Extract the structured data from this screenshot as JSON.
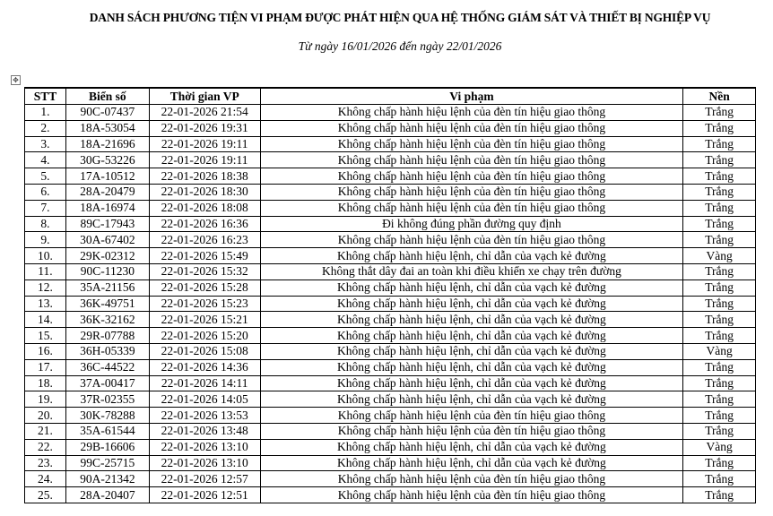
{
  "title": "DANH SÁCH PHƯƠNG TIỆN VI PHẠM ĐƯỢC PHÁT HIỆN QUA HỆ THỐNG GIÁM SÁT VÀ THIẾT BỊ NGHIỆP VỤ",
  "subtitle": "Từ ngày 16/01/2026 đến ngày 22/01/2026",
  "table": {
    "headers": [
      "STT",
      "Biển số",
      "Thời gian VP",
      "Vi phạm",
      "Nền"
    ],
    "rows": [
      [
        "1.",
        "90C-07437",
        "22-01-2026 21:54",
        "Không chấp hành hiệu lệnh của đèn tín hiệu giao thông",
        "Trắng"
      ],
      [
        "2.",
        "18A-53054",
        "22-01-2026 19:31",
        "Không chấp hành hiệu lệnh của đèn tín hiệu giao thông",
        "Trắng"
      ],
      [
        "3.",
        "18A-21696",
        "22-01-2026 19:11",
        "Không chấp hành hiệu lệnh của đèn tín hiệu giao thông",
        "Trắng"
      ],
      [
        "4.",
        "30G-53226",
        "22-01-2026 19:11",
        "Không chấp hành hiệu lệnh của đèn tín hiệu giao thông",
        "Trắng"
      ],
      [
        "5.",
        "17A-10512",
        "22-01-2026 18:38",
        "Không chấp hành hiệu lệnh của đèn tín hiệu giao thông",
        "Trắng"
      ],
      [
        "6.",
        "28A-20479",
        "22-01-2026 18:30",
        "Không chấp hành hiệu lệnh của đèn tín hiệu giao thông",
        "Trắng"
      ],
      [
        "7.",
        "18A-16974",
        "22-01-2026 18:08",
        "Không chấp hành hiệu lệnh của đèn tín hiệu giao thông",
        "Trắng"
      ],
      [
        "8.",
        "89C-17943",
        "22-01-2026 16:36",
        "Đi không đúng phần đường quy định",
        "Trắng"
      ],
      [
        "9.",
        "30A-67402",
        "22-01-2026 16:23",
        "Không chấp hành hiệu lệnh của đèn tín hiệu giao thông",
        "Trắng"
      ],
      [
        "10.",
        "29K-02312",
        "22-01-2026 15:49",
        "Không chấp hành hiệu lệnh, chỉ dẫn của vạch kẻ đường",
        "Vàng"
      ],
      [
        "11.",
        "90C-11230",
        "22-01-2026 15:32",
        "Không thắt dây đai an toàn khi điều khiển xe chạy trên đường",
        "Trắng"
      ],
      [
        "12.",
        "35A-21156",
        "22-01-2026 15:28",
        "Không chấp hành hiệu lệnh, chỉ dẫn của vạch kẻ đường",
        "Trắng"
      ],
      [
        "13.",
        "36K-49751",
        "22-01-2026 15:23",
        "Không chấp hành hiệu lệnh, chỉ dẫn của vạch kẻ đường",
        "Trắng"
      ],
      [
        "14.",
        "36K-32162",
        "22-01-2026 15:21",
        "Không chấp hành hiệu lệnh, chỉ dẫn của vạch kẻ đường",
        "Trắng"
      ],
      [
        "15.",
        "29R-07788",
        "22-01-2026 15:20",
        "Không chấp hành hiệu lệnh, chỉ dẫn của vạch kẻ đường",
        "Trắng"
      ],
      [
        "16.",
        "36H-05339",
        "22-01-2026 15:08",
        "Không chấp hành hiệu lệnh, chỉ dẫn của vạch kẻ đường",
        "Vàng"
      ],
      [
        "17.",
        "36C-44522",
        "22-01-2026 14:36",
        "Không chấp hành hiệu lệnh, chỉ dẫn của vạch kẻ đường",
        "Trắng"
      ],
      [
        "18.",
        "37A-00417",
        "22-01-2026 14:11",
        "Không chấp hành hiệu lệnh, chỉ dẫn của vạch kẻ đường",
        "Trắng"
      ],
      [
        "19.",
        "37R-02355",
        "22-01-2026 14:05",
        "Không chấp hành hiệu lệnh, chỉ dẫn của vạch kẻ đường",
        "Trắng"
      ],
      [
        "20.",
        "30K-78288",
        "22-01-2026 13:53",
        "Không chấp hành hiệu lệnh của đèn tín hiệu giao thông",
        "Trắng"
      ],
      [
        "21.",
        "35A-61544",
        "22-01-2026 13:48",
        "Không chấp hành hiệu lệnh của đèn tín hiệu giao thông",
        "Trắng"
      ],
      [
        "22.",
        "29B-16606",
        "22-01-2026 13:10",
        "Không chấp hành hiệu lệnh, chỉ dẫn của vạch kẻ đường",
        "Vàng"
      ],
      [
        "23.",
        "99C-25715",
        "22-01-2026 13:10",
        "Không chấp hành hiệu lệnh, chỉ dẫn của vạch kẻ đường",
        "Trắng"
      ],
      [
        "24.",
        "90A-21342",
        "22-01-2026 12:57",
        "Không chấp hành hiệu lệnh của đèn tín hiệu giao thông",
        "Trắng"
      ],
      [
        "25.",
        "28A-20407",
        "22-01-2026 12:51",
        "Không chấp hành hiệu lệnh của đèn tín hiệu giao thông",
        "Trắng"
      ]
    ]
  }
}
